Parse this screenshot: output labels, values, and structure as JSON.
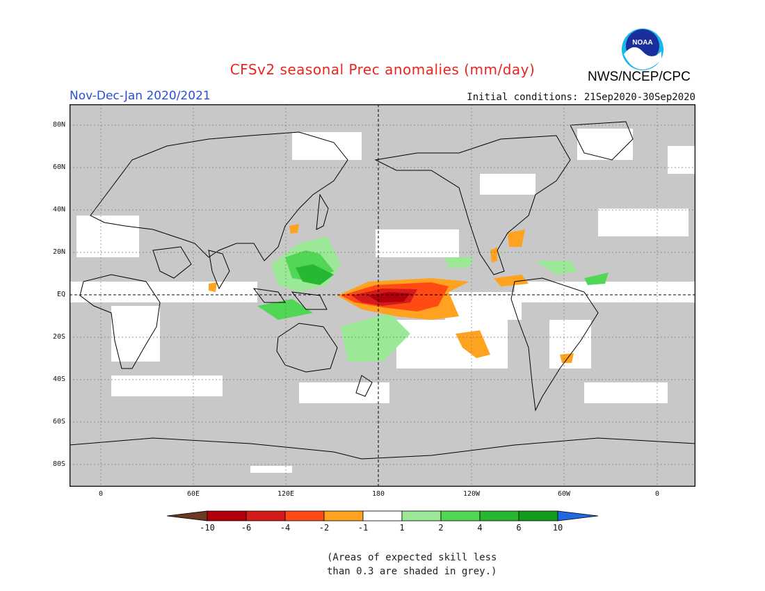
{
  "title": "CFSv2 seasonal Prec anomalies (mm/day)",
  "period": "Nov-Dec-Jan 2020/2021",
  "initial_conditions": "Initial conditions: 21Sep2020-30Sep2020",
  "agency": "NWS/NCEP/CPC",
  "logo_text": "NOAA",
  "latitude_labels": [
    "80N",
    "60N",
    "40N",
    "20N",
    "EQ",
    "20S",
    "40S",
    "60S",
    "80S"
  ],
  "longitude_labels": [
    "0",
    "60E",
    "120E",
    "180",
    "120W",
    "60W",
    "0"
  ],
  "colorbar": {
    "labels": [
      "-10",
      "-6",
      "-4",
      "-2",
      "-1",
      "1",
      "2",
      "4",
      "6",
      "10"
    ],
    "colors": [
      "#6b3a22",
      "#b2000b",
      "#d41a1a",
      "#ff4a14",
      "#ffa21f",
      "#ffffff",
      "#9be996",
      "#52d655",
      "#27b831",
      "#109d1e",
      "#2167e0"
    ]
  },
  "colors": {
    "background_grey": "#c8c8c8",
    "coast": "#000000",
    "title_red": "#e8261f",
    "period_blue": "#2a4fd6"
  },
  "footnote": [
    "(Areas of expected skill less",
    "than 0.3 are shaded in grey.)"
  ]
}
